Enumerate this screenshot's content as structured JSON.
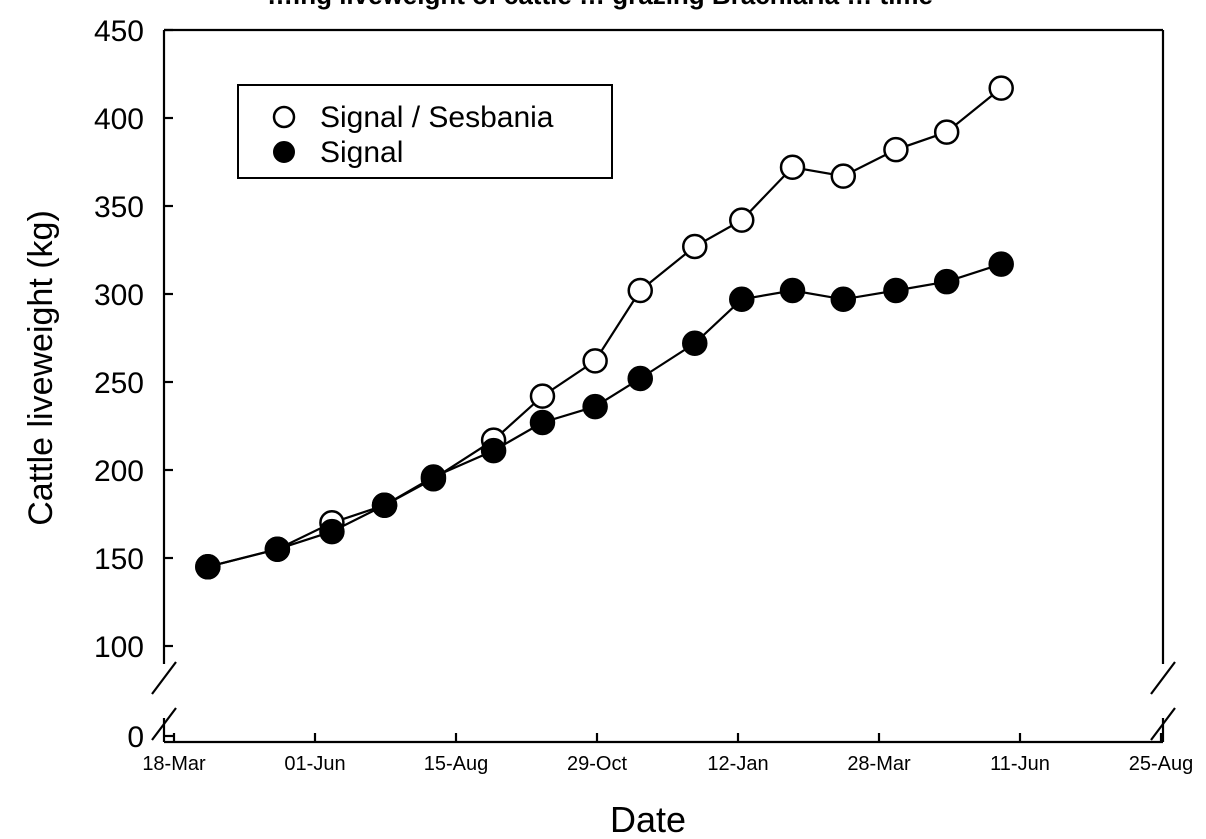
{
  "chart_data": {
    "type": "line",
    "title": "…ing liveweight of cattle … grazing Brachiaria … time",
    "xlabel": "Date",
    "ylabel": "Cattle liveweight (kg)",
    "y_ticks": [
      0,
      100,
      150,
      200,
      250,
      300,
      350,
      400,
      450
    ],
    "x_ticks": [
      "18-Mar",
      "01-Jun",
      "15-Aug",
      "29-Oct",
      "12-Jan",
      "28-Mar",
      "11-Jun",
      "25-Aug"
    ],
    "ylim": [
      0,
      450
    ],
    "y_axis_break": [
      0,
      100
    ],
    "legend_position": "top-left",
    "grid": false,
    "series": [
      {
        "name": "Signal / Sesbania",
        "marker": "open-circle",
        "x": [
          "1989-04-05",
          "1989-05-12",
          "1989-06-10",
          "1989-07-08",
          "1989-08-03",
          "1989-09-04",
          "1989-09-30",
          "1989-10-28",
          "1989-11-21",
          "1989-12-20",
          "1990-01-14",
          "1990-02-10",
          "1990-03-09",
          "1990-04-06",
          "1990-05-03",
          "1990-06-01"
        ],
        "y": [
          145,
          155,
          170,
          180,
          195,
          217,
          242,
          262,
          302,
          327,
          342,
          372,
          367,
          382,
          392,
          417
        ]
      },
      {
        "name": "Signal",
        "marker": "filled-circle",
        "x": [
          "1989-04-05",
          "1989-05-12",
          "1989-06-10",
          "1989-07-08",
          "1989-08-03",
          "1989-09-04",
          "1989-09-30",
          "1989-10-28",
          "1989-11-21",
          "1989-12-20",
          "1990-01-14",
          "1990-02-10",
          "1990-03-09",
          "1990-04-06",
          "1990-05-03",
          "1990-06-01"
        ],
        "y": [
          145,
          155,
          165,
          180,
          196,
          211,
          227,
          236,
          252,
          272,
          297,
          302,
          297,
          302,
          307,
          317
        ]
      }
    ]
  }
}
